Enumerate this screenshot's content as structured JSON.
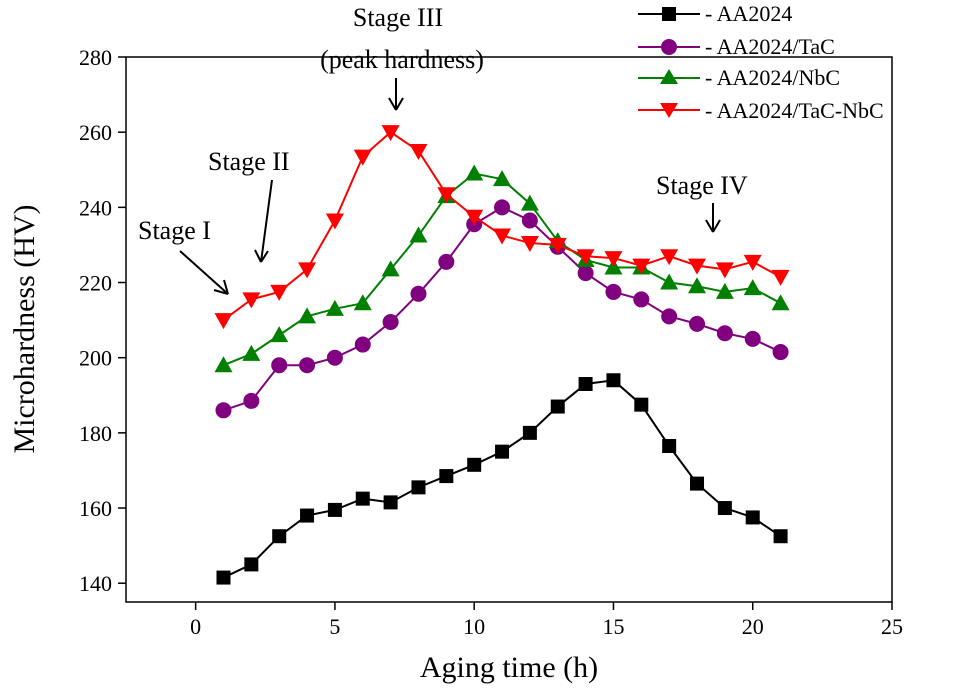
{
  "chart_data": {
    "type": "line",
    "title": "",
    "xlabel": "Aging time (h)",
    "ylabel": "Microhardness (HV)",
    "xlim": [
      -2.5,
      25
    ],
    "ylim": [
      135,
      280
    ],
    "xticks": [
      0,
      5,
      10,
      15,
      20,
      25
    ],
    "yticks": [
      140,
      160,
      180,
      200,
      220,
      240,
      260,
      280
    ],
    "x": [
      1,
      2,
      3,
      4,
      5,
      6,
      7,
      8,
      9,
      10,
      11,
      12,
      13,
      14,
      15,
      16,
      17,
      18,
      19,
      20,
      21
    ],
    "legend_position": "top-right",
    "series": [
      {
        "name": "- AA2024",
        "marker": "square",
        "color": "#000000",
        "values": [
          141.5,
          145,
          152.5,
          158,
          159.5,
          162.5,
          161.5,
          165.5,
          168.5,
          171.5,
          175,
          180,
          187,
          193,
          194,
          187.5,
          176.5,
          166.5,
          160,
          157.5,
          152.5
        ]
      },
      {
        "name": "- AA2024/TaC",
        "marker": "circle",
        "color": "#800080",
        "values": [
          186,
          188.5,
          198,
          198,
          200,
          203.5,
          209.5,
          217,
          225.5,
          235.5,
          240,
          236.5,
          229.5,
          222.5,
          217.5,
          215.5,
          211,
          209,
          206.5,
          205,
          201.5
        ]
      },
      {
        "name": "- AA2024/NbC",
        "marker": "triangle-up",
        "color": "#008000",
        "values": [
          198,
          201,
          206,
          211,
          213,
          214.5,
          223.5,
          232.5,
          243,
          249,
          247.5,
          241,
          231,
          226,
          224,
          224,
          220,
          219,
          217.5,
          218.5,
          214.5
        ]
      },
      {
        "name": "- AA2024/TaC-NbC",
        "marker": "triangle-down",
        "color": "#ff0000",
        "values": [
          210,
          215.5,
          217.5,
          223.5,
          236.5,
          253.5,
          260,
          255,
          243.5,
          237.5,
          232.5,
          230.5,
          230,
          227,
          226.5,
          224.5,
          227,
          224.5,
          223.5,
          225.5,
          221.5
        ]
      }
    ],
    "annotations": [
      {
        "text": "Stage I",
        "x": 1,
        "y": 210
      },
      {
        "text": "Stage II",
        "x": 2.5,
        "y": 219
      },
      {
        "text": "Stage III",
        "x": 7,
        "y": 260
      },
      {
        "text": "(peak hardness)",
        "x": 7,
        "y": 260
      },
      {
        "text": "Stage IV",
        "x": 18.7,
        "y": 226
      }
    ]
  }
}
